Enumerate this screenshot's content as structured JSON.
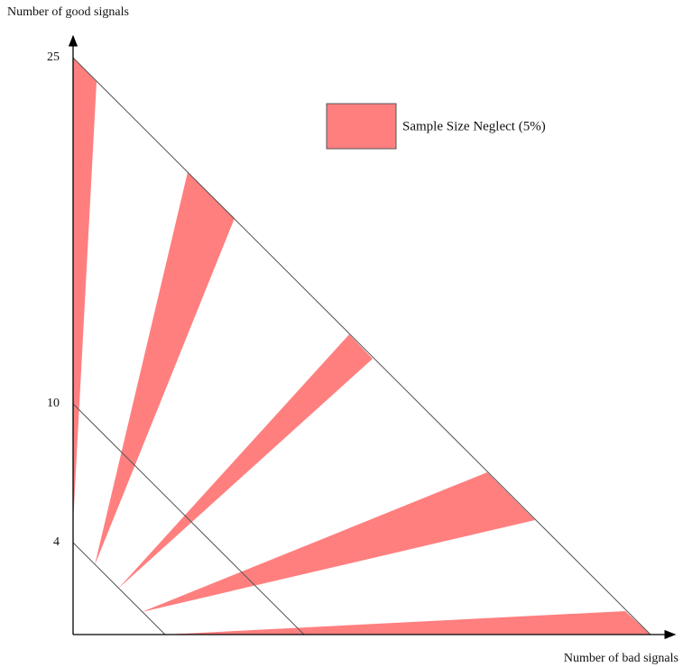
{
  "y_axis_label": "Number of good signals",
  "x_axis_label": "Number of bad signals",
  "y_ticks": [
    25,
    10,
    4
  ],
  "legend": "Sample Size Neglect (5%)"
}
